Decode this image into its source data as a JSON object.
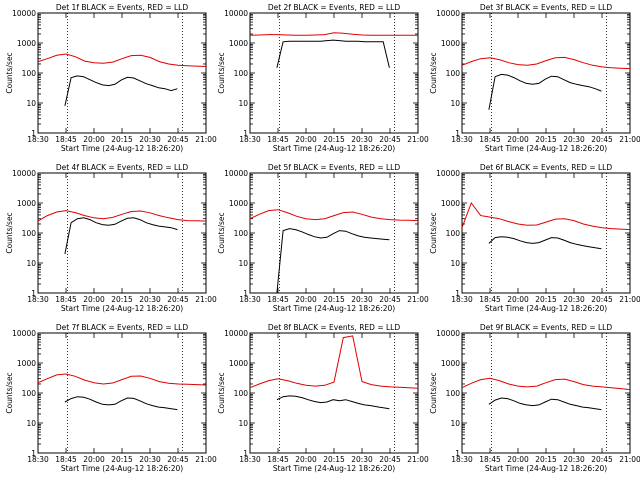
{
  "colors": {
    "events": "#000000",
    "lld": "#e00000",
    "axis": "#000000"
  },
  "chart_data": [
    {
      "type": "line",
      "title": "Det 1f BLACK = Events, RED = LLD",
      "xlabel": "Start Time (24-Aug-12 18:26:20)",
      "ylabel": "Counts/sec",
      "x_ticks": [
        "18:30",
        "18:45",
        "20:00",
        "20:15",
        "20:30",
        "20:45",
        "21:00"
      ],
      "y_ticks": [
        "1",
        "10",
        "100",
        "1000",
        "10000"
      ],
      "y_scale": "log",
      "ylim": [
        1,
        10000
      ],
      "series": [
        {
          "name": "LLD",
          "values": [
            240,
            300,
            390,
            430,
            350,
            250,
            220,
            210,
            230,
            300,
            380,
            390,
            330,
            240,
            200,
            180,
            175,
            170,
            165
          ]
        },
        {
          "name": "Events",
          "values": [
            8,
            70,
            80,
            75,
            60,
            48,
            40,
            38,
            42,
            58,
            72,
            68,
            55,
            44,
            38,
            32,
            30,
            26,
            30
          ]
        }
      ]
    },
    {
      "type": "line",
      "title": "Det 2f BLACK = Events, RED = LLD",
      "xlabel": "Start Time (24-Aug-12 18:26:20)",
      "ylabel": "Counts/sec",
      "x_ticks": [
        "18:30",
        "18:45",
        "20:00",
        "20:15",
        "20:30",
        "20:45",
        "21:00"
      ],
      "y_ticks": [
        "1",
        "10",
        "100",
        "1000",
        "10000"
      ],
      "y_scale": "log",
      "ylim": [
        1,
        10000
      ],
      "series": [
        {
          "name": "LLD",
          "values": [
            1800,
            1850,
            1900,
            1900,
            1850,
            1800,
            1800,
            1850,
            1900,
            2200,
            2100,
            1950,
            1850,
            1800,
            1800,
            1800,
            1800,
            1800,
            1800
          ]
        },
        {
          "name": "Events",
          "values": [
            150,
            1100,
            1150,
            1150,
            1150,
            1150,
            1150,
            1150,
            1200,
            1250,
            1200,
            1150,
            1150,
            1150,
            1100,
            1100,
            1100,
            1100,
            150
          ]
        }
      ]
    },
    {
      "type": "line",
      "title": "Det 3f BLACK = Events, RED = LLD",
      "xlabel": "Start Time (24-Aug-12 18:26:20)",
      "ylabel": "Counts/sec",
      "x_ticks": [
        "18:30",
        "18:45",
        "20:00",
        "20:15",
        "20:30",
        "20:45",
        "21:00"
      ],
      "y_ticks": [
        "1",
        "10",
        "100",
        "1000",
        "10000"
      ],
      "y_scale": "log",
      "ylim": [
        1,
        10000
      ],
      "series": [
        {
          "name": "LLD",
          "values": [
            180,
            240,
            300,
            320,
            280,
            220,
            190,
            180,
            200,
            260,
            320,
            330,
            280,
            220,
            180,
            160,
            150,
            145,
            140
          ]
        },
        {
          "name": "Events",
          "values": [
            6,
            75,
            90,
            85,
            70,
            55,
            45,
            42,
            45,
            62,
            78,
            75,
            60,
            48,
            42,
            38,
            35,
            30,
            25
          ]
        }
      ]
    },
    {
      "type": "line",
      "title": "Det 4f BLACK = Events, RED = LLD",
      "xlabel": "Start Time (24-Aug-12 18:26:20)",
      "ylabel": "Counts/sec",
      "x_ticks": [
        "18:30",
        "18:45",
        "20:00",
        "20:15",
        "20:30",
        "20:45",
        "21:00"
      ],
      "y_ticks": [
        "1",
        "10",
        "100",
        "1000",
        "10000"
      ],
      "y_scale": "log",
      "ylim": [
        1,
        10000
      ],
      "series": [
        {
          "name": "LLD",
          "values": [
            250,
            380,
            500,
            560,
            480,
            380,
            320,
            300,
            330,
            420,
            520,
            540,
            470,
            380,
            320,
            280,
            260,
            255,
            250
          ]
        },
        {
          "name": "Events",
          "values": [
            20,
            220,
            300,
            320,
            280,
            220,
            190,
            180,
            195,
            250,
            310,
            320,
            280,
            220,
            190,
            170,
            160,
            150,
            130
          ]
        }
      ]
    },
    {
      "type": "line",
      "title": "Det 5f BLACK = Events, RED = LLD",
      "xlabel": "Start Time (24-Aug-12 18:26:20)",
      "ylabel": "Counts/sec",
      "x_ticks": [
        "18:30",
        "18:45",
        "20:00",
        "20:15",
        "20:30",
        "20:45",
        "21:00"
      ],
      "y_ticks": [
        "1",
        "10",
        "100",
        "1000",
        "10000"
      ],
      "y_scale": "log",
      "ylim": [
        1,
        10000
      ],
      "series": [
        {
          "name": "LLD",
          "values": [
            300,
            420,
            560,
            600,
            480,
            360,
            300,
            280,
            300,
            380,
            480,
            500,
            420,
            340,
            300,
            280,
            270,
            265,
            260
          ]
        },
        {
          "name": "Events",
          "values": [
            1,
            120,
            140,
            130,
            110,
            90,
            75,
            68,
            72,
            95,
            120,
            115,
            95,
            80,
            72,
            68,
            65,
            62,
            60
          ]
        }
      ]
    },
    {
      "type": "line",
      "title": "Det 6f BLACK = Events, RED = LLD",
      "xlabel": "Start Time (24-Aug-12 18:26:20)",
      "ylabel": "Counts/sec",
      "x_ticks": [
        "18:30",
        "18:45",
        "20:00",
        "20:15",
        "20:30",
        "20:45",
        "21:00"
      ],
      "y_ticks": [
        "1",
        "10",
        "100",
        "1000",
        "10000"
      ],
      "y_scale": "log",
      "ylim": [
        1,
        10000
      ],
      "series": [
        {
          "name": "LLD",
          "values": [
            150,
            1000,
            380,
            340,
            300,
            240,
            200,
            180,
            185,
            230,
            290,
            300,
            260,
            200,
            170,
            150,
            140,
            135,
            130
          ]
        },
        {
          "name": "Events",
          "values": [
            45,
            70,
            75,
            72,
            65,
            55,
            48,
            45,
            48,
            58,
            70,
            68,
            58,
            48,
            42,
            38,
            35,
            32,
            30
          ]
        }
      ]
    },
    {
      "type": "line",
      "title": "Det 7f BLACK = Events, RED = LLD",
      "xlabel": "Start Time (24-Aug-12 18:26:20)",
      "ylabel": "Counts/sec",
      "x_ticks": [
        "18:30",
        "18:45",
        "20:00",
        "20:15",
        "20:30",
        "20:45",
        "21:00"
      ],
      "y_ticks": [
        "1",
        "10",
        "100",
        "1000",
        "10000"
      ],
      "y_scale": "log",
      "ylim": [
        1,
        10000
      ],
      "series": [
        {
          "name": "LLD",
          "values": [
            220,
            300,
            400,
            430,
            360,
            270,
            220,
            200,
            215,
            280,
            360,
            370,
            310,
            240,
            210,
            200,
            195,
            190,
            185
          ]
        },
        {
          "name": "Events",
          "values": [
            50,
            65,
            75,
            72,
            62,
            50,
            42,
            40,
            42,
            55,
            68,
            66,
            55,
            44,
            38,
            34,
            32,
            30,
            28
          ]
        }
      ]
    },
    {
      "type": "line",
      "title": "Det 8f BLACK = Events, RED = LLD",
      "xlabel": "Start Time (24-Aug-12 18:26:20)",
      "ylabel": "Counts/sec",
      "x_ticks": [
        "18:30",
        "18:45",
        "20:00",
        "20:15",
        "20:30",
        "20:45",
        "21:00"
      ],
      "y_ticks": [
        "1",
        "10",
        "100",
        "1000",
        "10000"
      ],
      "y_scale": "log",
      "ylim": [
        1,
        10000
      ],
      "series": [
        {
          "name": "LLD",
          "values": [
            150,
            200,
            260,
            300,
            260,
            210,
            180,
            170,
            180,
            230,
            7000,
            8000,
            240,
            190,
            170,
            160,
            155,
            150,
            145
          ]
        },
        {
          "name": "Events",
          "values": [
            60,
            75,
            80,
            78,
            70,
            60,
            52,
            48,
            50,
            60,
            55,
            60,
            52,
            45,
            40,
            38,
            35,
            32,
            30
          ]
        }
      ]
    },
    {
      "type": "line",
      "title": "Det 9f BLACK = Events, RED = LLD",
      "xlabel": "Start Time (24-Aug-12 18:26:20)",
      "ylabel": "Counts/sec",
      "x_ticks": [
        "18:30",
        "18:45",
        "20:00",
        "20:15",
        "20:30",
        "20:45",
        "21:00"
      ],
      "y_ticks": [
        "1",
        "10",
        "100",
        "1000",
        "10000"
      ],
      "y_scale": "log",
      "ylim": [
        1,
        10000
      ],
      "series": [
        {
          "name": "LLD",
          "values": [
            150,
            210,
            280,
            310,
            260,
            200,
            170,
            160,
            170,
            220,
            280,
            290,
            240,
            190,
            170,
            160,
            150,
            140,
            130
          ]
        },
        {
          "name": "Events",
          "values": [
            42,
            58,
            68,
            65,
            55,
            45,
            40,
            38,
            40,
            50,
            62,
            60,
            50,
            42,
            38,
            34,
            32,
            30,
            28
          ]
        }
      ]
    }
  ]
}
